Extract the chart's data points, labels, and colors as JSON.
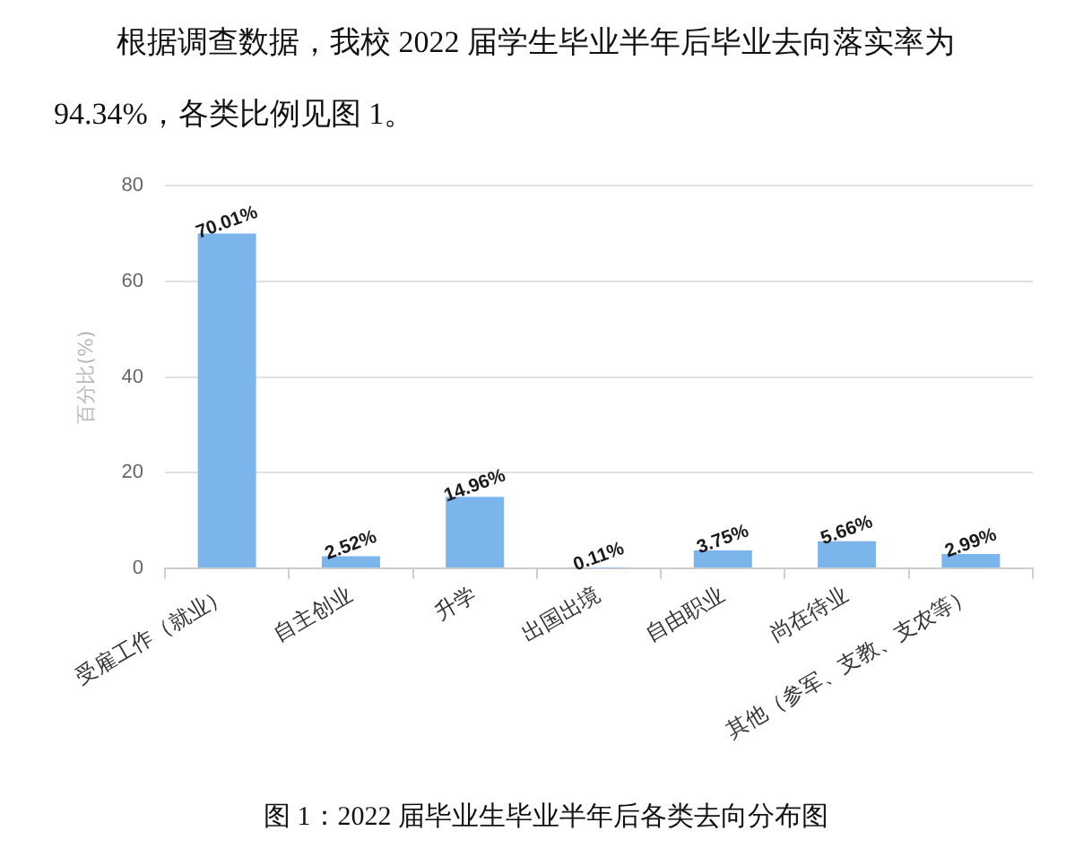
{
  "chart_data": {
    "type": "bar",
    "title": "图 1：2022 届毕业生毕业半年后各类去向分布图",
    "annotations": [
      "根据调查数据，我校 2022 届学生毕业半年后毕业去向落实率为94.34%，各类比例见图 1。"
    ],
    "ylabel": "百分比(%)",
    "categories": [
      "受雇工作（就业）",
      "自主创业",
      "升学",
      "出国出境",
      "自由职业",
      "尚在待业",
      "其他（参军、支教、支农等）"
    ],
    "values": [
      70.01,
      2.52,
      14.96,
      0.11,
      3.75,
      5.66,
      2.99
    ],
    "value_labels": [
      "70.01%",
      "2.52%",
      "14.96%",
      "0.11%",
      "3.75%",
      "5.66%",
      "2.99%"
    ],
    "color": "#7cb5ec",
    "ylim": [
      0,
      80
    ],
    "yticks": [
      0,
      20,
      40,
      60,
      80
    ],
    "grid": "y"
  }
}
